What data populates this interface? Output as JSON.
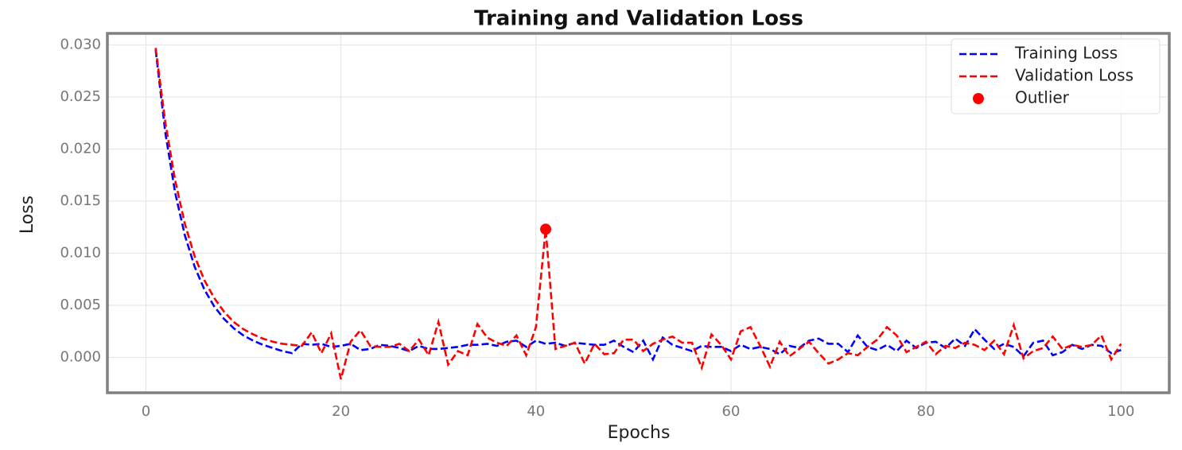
{
  "chart_data": {
    "type": "line",
    "title": "Training and Validation Loss",
    "xlabel": "Epochs",
    "ylabel": "Loss",
    "x": [
      1,
      2,
      3,
      4,
      5,
      6,
      7,
      8,
      9,
      10,
      11,
      12,
      13,
      14,
      15,
      16,
      17,
      18,
      19,
      20,
      21,
      22,
      23,
      24,
      25,
      26,
      27,
      28,
      29,
      30,
      31,
      32,
      33,
      34,
      35,
      36,
      37,
      38,
      39,
      40,
      41,
      42,
      43,
      44,
      45,
      46,
      47,
      48,
      49,
      50,
      51,
      52,
      53,
      54,
      55,
      56,
      57,
      58,
      59,
      60,
      61,
      62,
      63,
      64,
      65,
      66,
      67,
      68,
      69,
      70,
      71,
      72,
      73,
      74,
      75,
      76,
      77,
      78,
      79,
      80,
      81,
      82,
      83,
      84,
      85,
      86,
      87,
      88,
      89,
      90,
      91,
      92,
      93,
      94,
      95,
      96,
      97,
      98,
      99,
      100
    ],
    "series": [
      {
        "name": "Training Loss",
        "color": "#0000ff",
        "style": "dashed",
        "values": [
          0.0295,
          0.0215,
          0.0158,
          0.0117,
          0.0087,
          0.0065,
          0.0049,
          0.0037,
          0.0028,
          0.0021,
          0.0016,
          0.0012,
          0.0009,
          0.0006,
          0.0004,
          0.0013,
          0.0012,
          0.0013,
          0.001,
          0.0011,
          0.0013,
          0.0007,
          0.0008,
          0.0012,
          0.0011,
          0.0009,
          0.0006,
          0.0011,
          0.0008,
          0.0008,
          0.0009,
          0.001,
          0.0012,
          0.0012,
          0.0013,
          0.0011,
          0.0015,
          0.0016,
          0.001,
          0.0016,
          0.0013,
          0.0014,
          0.0011,
          0.0014,
          0.0013,
          0.0012,
          0.0012,
          0.0016,
          0.001,
          0.0005,
          0.0016,
          -0.0002,
          0.0019,
          0.0012,
          0.0009,
          0.0006,
          0.0011,
          0.001,
          0.001,
          0.0006,
          0.0012,
          0.0008,
          0.001,
          0.0008,
          0.0003,
          0.0011,
          0.0009,
          0.0016,
          0.0018,
          0.0013,
          0.0013,
          0.0005,
          0.0021,
          0.001,
          0.0007,
          0.0012,
          0.0006,
          0.0016,
          0.0009,
          0.0014,
          0.0015,
          0.0009,
          0.0018,
          0.0011,
          0.0027,
          0.0017,
          0.0008,
          0.0013,
          0.001,
          0.0001,
          0.0014,
          0.0016,
          0.0002,
          0.0005,
          0.0012,
          0.0008,
          0.0012,
          0.0011,
          0.0004,
          0.0007
        ]
      },
      {
        "name": "Validation Loss",
        "color": "#ff0000",
        "style": "dashed",
        "values": [
          0.0297,
          0.0225,
          0.017,
          0.0128,
          0.0097,
          0.0074,
          0.0057,
          0.0044,
          0.0034,
          0.0027,
          0.0022,
          0.0018,
          0.0015,
          0.0013,
          0.0012,
          0.0011,
          0.0024,
          0.0004,
          0.0023,
          -0.0021,
          0.0015,
          0.0026,
          0.0011,
          0.001,
          0.001,
          0.0013,
          0.0006,
          0.0017,
          0.0002,
          0.0034,
          -0.0007,
          0.0006,
          0.0002,
          0.0032,
          0.0019,
          0.0014,
          0.0011,
          0.0021,
          0.0002,
          0.0029,
          0.0123,
          0.0008,
          0.0011,
          0.0014,
          -0.0006,
          0.0013,
          0.0003,
          0.0004,
          0.0017,
          0.0017,
          0.0006,
          0.0013,
          0.0017,
          0.002,
          0.0014,
          0.0014,
          -0.001,
          0.0022,
          0.0012,
          -0.0002,
          0.0025,
          0.0029,
          0.0011,
          -0.0009,
          0.0015,
          0.0001,
          0.0008,
          0.0015,
          0.0004,
          -0.0006,
          -0.0002,
          0.0004,
          0.0002,
          0.001,
          0.0017,
          0.0029,
          0.0021,
          0.0005,
          0.001,
          0.0015,
          0.0003,
          0.0011,
          0.0009,
          0.0014,
          0.0012,
          0.0007,
          0.0016,
          0.0003,
          0.0031,
          -0.0001,
          0.0006,
          0.0009,
          0.002,
          0.0008,
          0.0012,
          0.001,
          0.0012,
          0.0021,
          -0.0002,
          0.0013
        ]
      },
      {
        "name": "Outlier",
        "color": "#ff0000",
        "style": "marker",
        "x": [
          41
        ],
        "values": [
          0.0123
        ]
      }
    ],
    "xlim": [
      -3.95,
      104.95
    ],
    "ylim": [
      -0.0034,
      0.0311
    ],
    "xticks": [
      0,
      20,
      40,
      60,
      80,
      100
    ],
    "yticks": [
      {
        "value": 0,
        "label": "0.000"
      },
      {
        "value": 0.005,
        "label": "0.005"
      },
      {
        "value": 0.01,
        "label": "0.010"
      },
      {
        "value": 0.015,
        "label": "0.015"
      },
      {
        "value": 0.02,
        "label": "0.020"
      },
      {
        "value": 0.025,
        "label": "0.025"
      },
      {
        "value": 0.03,
        "label": "0.030"
      }
    ],
    "grid": true,
    "legend": "upper right"
  }
}
